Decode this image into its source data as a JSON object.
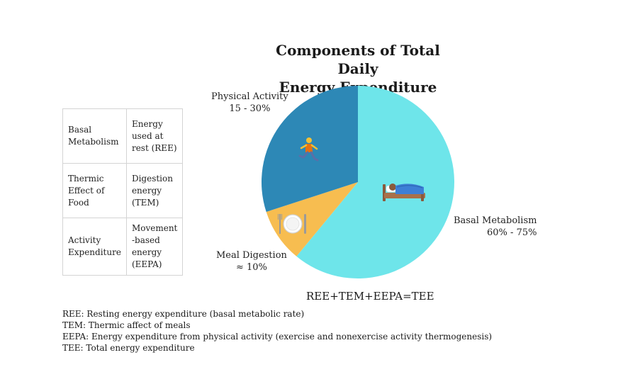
{
  "chart_data": {
    "type": "pie",
    "title": "Components of Total Daily Energy Expenditure",
    "title_lines": [
      "Components of Total Daily",
      "Energy Expenditure"
    ],
    "slices": [
      {
        "name": "Basal Metabolism",
        "range_label": "60% - 75%",
        "value": 61,
        "color": "#6ee5ea",
        "icon": "sleeping-in-bed-icon"
      },
      {
        "name": "Meal Digestion",
        "range_label": "≈ 10%",
        "value": 9,
        "color": "#f7bd50",
        "icon": "plate-with-cutlery-icon"
      },
      {
        "name": "Physical Activity",
        "range_label": "15 - 30%",
        "value": 30,
        "color": "#2d88b6",
        "icon": "runner-icon"
      }
    ]
  },
  "definitions": [
    {
      "term": "Basal Metabolism",
      "term_lines": [
        "Basal",
        "Metabolism"
      ],
      "meaning_lines": [
        "Energy",
        "used at",
        "rest (REE)"
      ]
    },
    {
      "term": "Thermic Effect of Food",
      "term_lines": [
        "Thermic",
        "Effect of",
        "Food"
      ],
      "meaning_lines": [
        "Digestion",
        "energy",
        "(TEM)"
      ]
    },
    {
      "term": "Activity Expenditure",
      "term_lines": [
        "Activity",
        "Expenditure"
      ],
      "meaning_lines": [
        "Movement",
        "-based",
        "energy",
        "(EEPA)"
      ]
    }
  ],
  "equation": "REE+TEM+EEPA=TEE",
  "glossary": [
    "REE: Resting energy expenditure (basal metabolic rate)",
    "TEM: Thermic affect of meals",
    "EEPA: Energy expenditure from physical activity (exercise and nonexercise activity thermogenesis)",
    "TEE: Total energy expenditure"
  ]
}
